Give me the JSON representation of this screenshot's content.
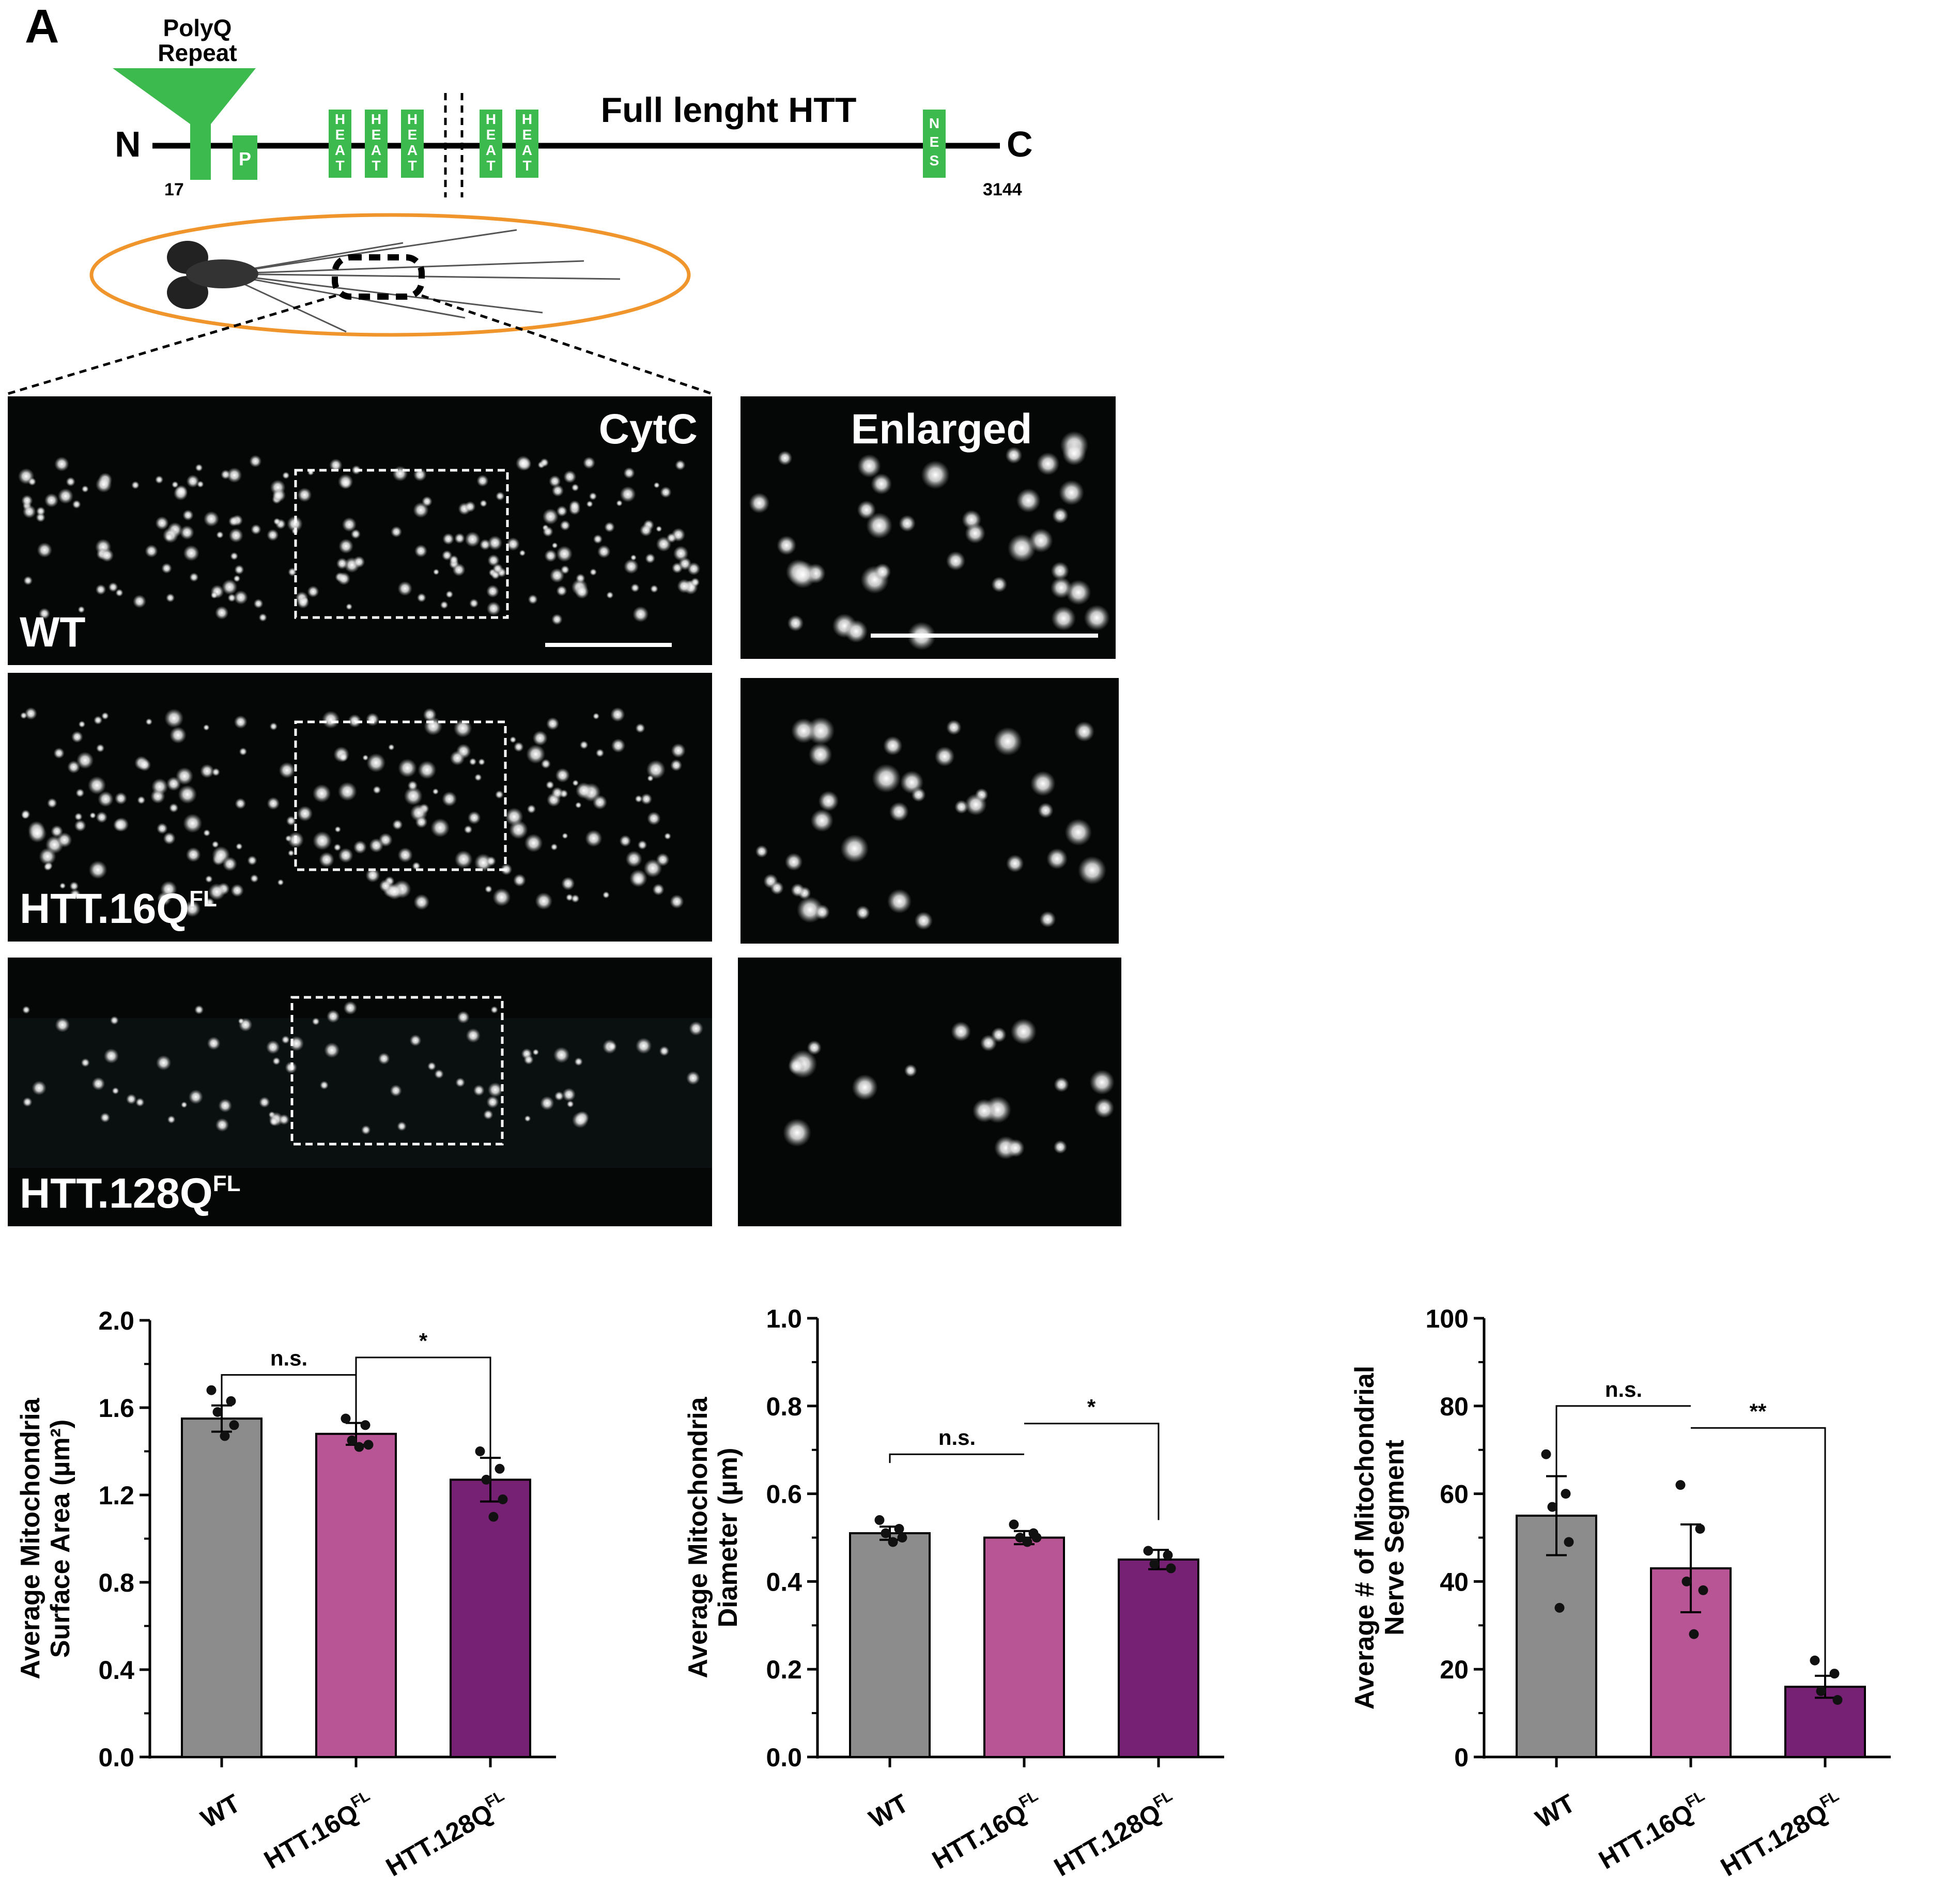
{
  "panel_label": "A",
  "schematic": {
    "n_label": "N",
    "c_label": "C",
    "polyq_line1": "PolyQ",
    "polyq_line2": "Repeat",
    "p_label": "P",
    "heat_label": [
      "H",
      "E",
      "A",
      "T"
    ],
    "nes_label": [
      "N",
      "E",
      "S"
    ],
    "title": "Full lenght HTT",
    "start_num": "17",
    "end_num": "3144",
    "colors": {
      "domain": "#3dba4e",
      "line": "#000000",
      "ellipse": "#f0952b"
    }
  },
  "images": {
    "cytc_label": "CytC",
    "enlarged_label": "Enlarged",
    "rows": [
      {
        "label": "WT",
        "sup": ""
      },
      {
        "label": "HTT.16Q",
        "sup": "FL"
      },
      {
        "label": "HTT.128Q",
        "sup": "FL"
      }
    ]
  },
  "chart_data": [
    {
      "type": "bar",
      "categories": [
        {
          "label": "WT",
          "sup": ""
        },
        {
          "label": "HTT.16Q",
          "sup": "FL"
        },
        {
          "label": "HTT.128Q",
          "sup": "FL"
        }
      ],
      "values": [
        1.55,
        1.48,
        1.27
      ],
      "errors": [
        0.06,
        0.05,
        0.1
      ],
      "points": [
        [
          1.68,
          1.63,
          1.58,
          1.52,
          1.47
        ],
        [
          1.55,
          1.52,
          1.45,
          1.43,
          1.42
        ],
        [
          1.4,
          1.32,
          1.27,
          1.18,
          1.1
        ]
      ],
      "ylabel_line1": "Average Mitochondria",
      "ylabel_line2": "Surface Area (µm²)",
      "ylim": [
        0,
        2.0
      ],
      "yticks": [
        "0.0",
        "0.4",
        "0.8",
        "1.2",
        "1.6",
        "2.0"
      ],
      "tick_values": [
        0,
        0.4,
        0.8,
        1.2,
        1.6,
        2.0
      ],
      "significance": [
        {
          "from": 0,
          "to": 1,
          "text": "n.s.",
          "y": 1.75,
          "drop_to": [
            1.61,
            1.53
          ]
        },
        {
          "from": 1,
          "to": 2,
          "text": "*",
          "y": 1.83,
          "drop_to": [
            1.75,
            1.37
          ]
        }
      ],
      "colors": [
        "#8c8c8c",
        "#b85595",
        "#762173"
      ]
    },
    {
      "type": "bar",
      "categories": [
        {
          "label": "WT",
          "sup": ""
        },
        {
          "label": "HTT.16Q",
          "sup": "FL"
        },
        {
          "label": "HTT.128Q",
          "sup": "FL"
        }
      ],
      "values": [
        0.51,
        0.5,
        0.45
      ],
      "errors": [
        0.015,
        0.015,
        0.022
      ],
      "points": [
        [
          0.54,
          0.52,
          0.51,
          0.5,
          0.49
        ],
        [
          0.53,
          0.51,
          0.5,
          0.5,
          0.49
        ],
        [
          0.47,
          0.46,
          0.44,
          0.43
        ]
      ],
      "ylabel_line1": "Average Mitochondria",
      "ylabel_line2": "Diameter (µm)",
      "ylim": [
        0,
        1.0
      ],
      "yticks": [
        "0.0",
        "0.2",
        "0.4",
        "0.6",
        "0.8",
        "1.0"
      ],
      "tick_values": [
        0,
        0.2,
        0.4,
        0.6,
        0.8,
        1.0
      ],
      "significance": [
        {
          "from": 0,
          "to": 1,
          "text": "n.s.",
          "y": 0.69,
          "drop_to": [
            0.67,
            0.69
          ]
        },
        {
          "from": 1,
          "to": 2,
          "text": "*",
          "y": 0.76,
          "drop_to": [
            0.76,
            0.54
          ]
        }
      ],
      "colors": [
        "#8c8c8c",
        "#b85595",
        "#762173"
      ]
    },
    {
      "type": "bar",
      "categories": [
        {
          "label": "WT",
          "sup": ""
        },
        {
          "label": "HTT.16Q",
          "sup": "FL"
        },
        {
          "label": "HTT.128Q",
          "sup": "FL"
        }
      ],
      "values": [
        55,
        43,
        16
      ],
      "errors": [
        9,
        10,
        2.5
      ],
      "points": [
        [
          69,
          60,
          57,
          49,
          34
        ],
        [
          62,
          52,
          40,
          38,
          28
        ],
        [
          22,
          19,
          15,
          13
        ]
      ],
      "ylabel_line1": "Average # of Mitochondrial",
      "ylabel_line2": "Nerve Segment",
      "ylim": [
        0,
        100
      ],
      "yticks": [
        "0",
        "20",
        "40",
        "60",
        "80",
        "100"
      ],
      "tick_values": [
        0,
        20,
        40,
        60,
        80,
        100
      ],
      "significance": [
        {
          "from": 0,
          "to": 1,
          "text": "n.s.",
          "y": 80,
          "drop_to": [
            64,
            80
          ]
        },
        {
          "from": 1,
          "to": 2,
          "text": "**",
          "y": 75,
          "drop_to": [
            75,
            18
          ]
        }
      ],
      "colors": [
        "#8c8c8c",
        "#b85595",
        "#762173"
      ]
    }
  ]
}
